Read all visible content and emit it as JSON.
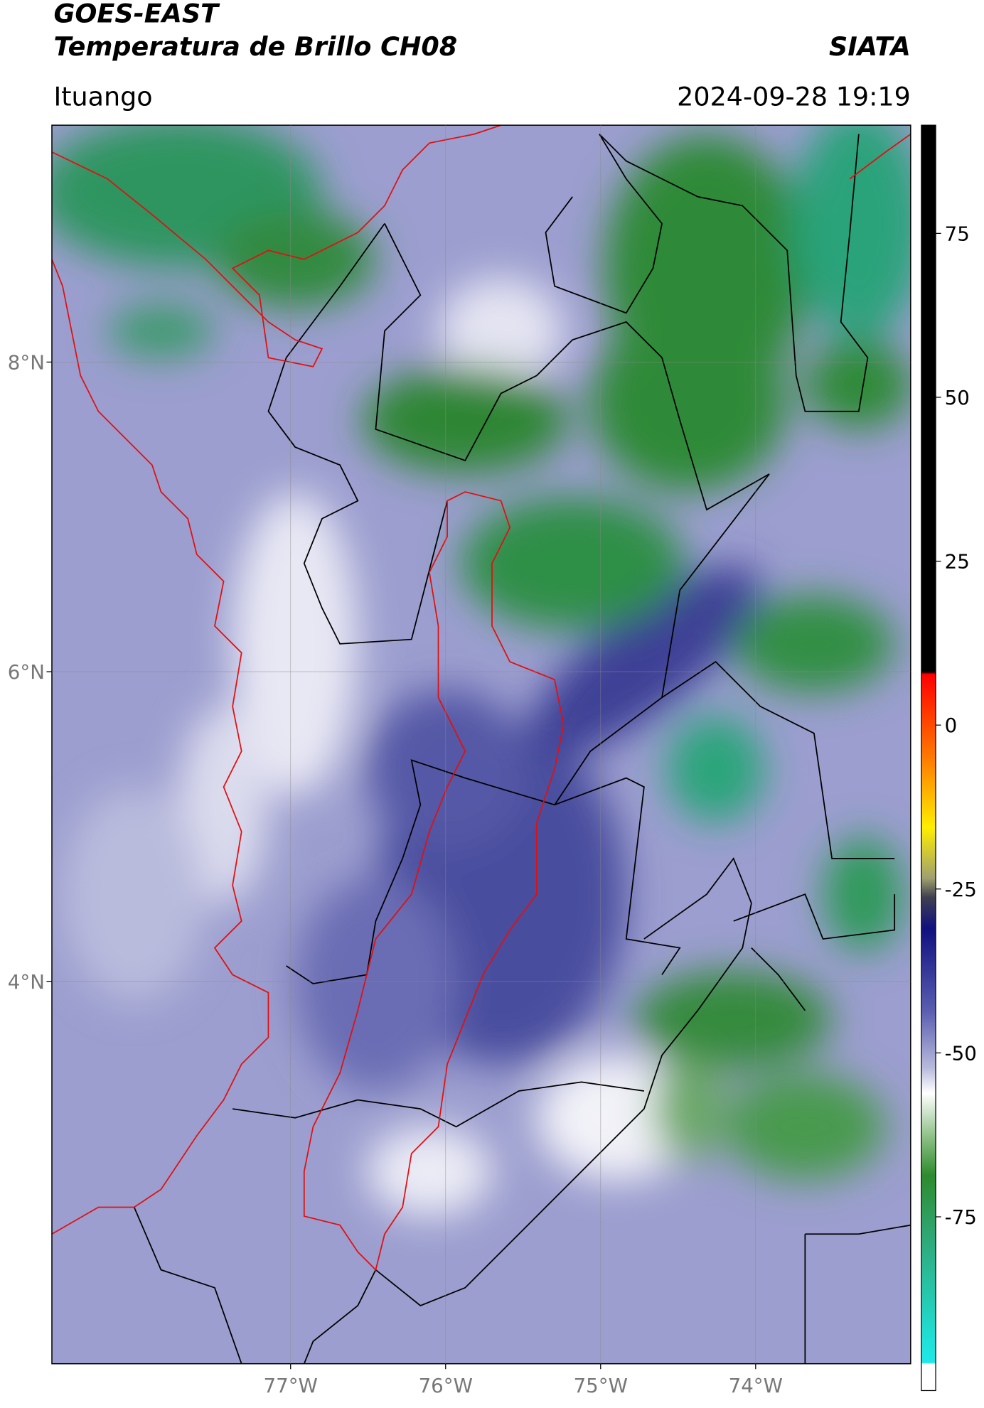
{
  "header": {
    "satellite": "GOES-EAST",
    "product": "Temperatura de Brillo CH08",
    "source": "SIATA",
    "location": "Ituango",
    "datetime": "2024-09-28 19:19"
  },
  "map": {
    "xlim": [
      -78.54,
      -73.0
    ],
    "ylim": [
      1.53,
      9.53
    ],
    "xticks": [
      {
        "value": -77,
        "label": "77°W"
      },
      {
        "value": -76,
        "label": "76°W"
      },
      {
        "value": -75,
        "label": "75°W"
      },
      {
        "value": -74,
        "label": "74°W"
      }
    ],
    "yticks": [
      {
        "value": 4,
        "label": "4°N"
      },
      {
        "value": 6,
        "label": "6°N"
      },
      {
        "value": 8,
        "label": "8°N"
      }
    ],
    "grid": true
  },
  "colorbar": {
    "lim": [
      -101.5,
      91.5
    ],
    "ticks": [
      -75,
      -50,
      -25,
      0,
      25,
      50,
      75
    ]
  }
}
